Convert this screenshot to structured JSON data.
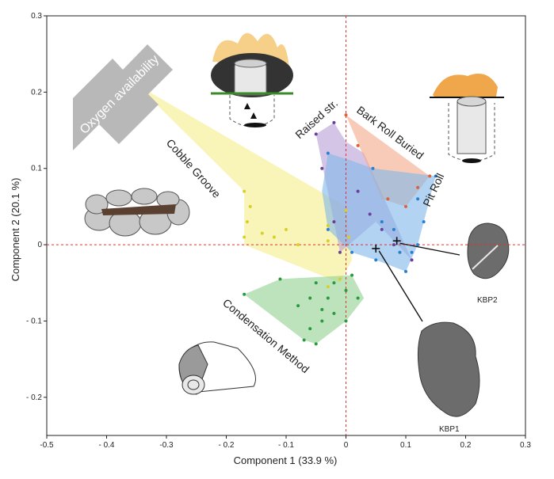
{
  "chart_data": {
    "type": "scatter",
    "xlabel": "Component 1 (33.9 %)",
    "ylabel": "Component 2 (20.1 %)",
    "xlim": [
      -0.5,
      0.3
    ],
    "ylim": [
      -0.25,
      0.3
    ],
    "x_ticks": [
      -0.5,
      -0.4,
      -0.3,
      -0.2,
      -0.1,
      0,
      0.1,
      0.2,
      0.3
    ],
    "x_tick_labels": [
      "-0.5",
      "- 0.4",
      "-0.3",
      "- 0.2",
      "- 0.1",
      "0",
      "0.1",
      "0.2",
      "0.3"
    ],
    "y_ticks": [
      -0.2,
      -0.1,
      0,
      0.1,
      0.2,
      0.3
    ],
    "y_tick_labels": [
      "- 0.2",
      "- 0.1",
      "0",
      "0.1",
      "0.2",
      "0.3"
    ],
    "reference_lines": {
      "x": 0,
      "y": 0
    },
    "grid": false,
    "series": [
      {
        "name": "Cobble Groove",
        "color": "#d8cf2a",
        "fill": "#f5ef8a",
        "hull": [
          [
            -0.35,
            0.21
          ],
          [
            0.0,
            0.05
          ],
          [
            0.01,
            -0.02
          ],
          [
            -0.01,
            -0.05
          ],
          [
            -0.17,
            0.0
          ],
          [
            -0.17,
            0.07
          ]
        ],
        "points": [
          [
            -0.17,
            0.07
          ],
          [
            -0.16,
            0.05
          ],
          [
            -0.165,
            0.03
          ],
          [
            -0.17,
            0.01
          ],
          [
            -0.14,
            0.015
          ],
          [
            -0.12,
            0.01
          ],
          [
            -0.1,
            0.02
          ],
          [
            -0.08,
            0.0
          ],
          [
            -0.03,
            0.025
          ],
          [
            -0.03,
            0.005
          ],
          [
            0.0,
            0.045
          ],
          [
            0.005,
            0.01
          ],
          [
            -0.01,
            -0.045
          ],
          [
            -0.03,
            -0.055
          ]
        ]
      },
      {
        "name": "Condensation Method",
        "color": "#2a9a3e",
        "fill": "#8fd08f",
        "hull": [
          [
            -0.17,
            -0.065
          ],
          [
            -0.11,
            -0.045
          ],
          [
            0.01,
            -0.04
          ],
          [
            0.03,
            -0.07
          ],
          [
            0.0,
            -0.1
          ],
          [
            -0.05,
            -0.13
          ],
          [
            -0.07,
            -0.125
          ]
        ],
        "points": [
          [
            -0.17,
            -0.065
          ],
          [
            -0.11,
            -0.045
          ],
          [
            -0.05,
            -0.05
          ],
          [
            -0.02,
            -0.05
          ],
          [
            -0.06,
            -0.07
          ],
          [
            -0.08,
            -0.08
          ],
          [
            -0.04,
            -0.085
          ],
          [
            -0.04,
            -0.1
          ],
          [
            -0.06,
            -0.11
          ],
          [
            -0.07,
            -0.125
          ],
          [
            -0.05,
            -0.13
          ],
          [
            -0.03,
            -0.07
          ],
          [
            0.0,
            -0.06
          ],
          [
            0.01,
            -0.04
          ],
          [
            0.02,
            -0.07
          ],
          [
            0.0,
            -0.1
          ],
          [
            -0.02,
            -0.09
          ]
        ]
      },
      {
        "name": "Raised str.",
        "color": "#6a3e9a",
        "fill": "#b79fd6",
        "hull": [
          [
            -0.05,
            0.145
          ],
          [
            -0.02,
            0.16
          ],
          [
            0.0,
            0.135
          ],
          [
            0.03,
            0.12
          ],
          [
            0.11,
            -0.02
          ],
          [
            0.05,
            0.03
          ],
          [
            -0.01,
            -0.01
          ],
          [
            -0.02,
            0.03
          ]
        ],
        "points": [
          [
            -0.05,
            0.145
          ],
          [
            -0.02,
            0.16
          ],
          [
            -0.04,
            0.1
          ],
          [
            0.02,
            0.07
          ],
          [
            0.04,
            0.04
          ],
          [
            0.06,
            0.02
          ],
          [
            0.08,
            0.0
          ],
          [
            0.11,
            -0.02
          ],
          [
            -0.01,
            -0.01
          ],
          [
            -0.02,
            0.03
          ]
        ]
      },
      {
        "name": "Bark Roll Buried",
        "color": "#e0603a",
        "fill": "#f4a88a",
        "hull": [
          [
            0.0,
            0.17
          ],
          [
            0.14,
            0.09
          ],
          [
            0.1,
            0.05
          ],
          [
            0.06,
            0.06
          ]
        ],
        "points": [
          [
            0.0,
            0.17
          ],
          [
            0.02,
            0.13
          ],
          [
            0.14,
            0.09
          ],
          [
            0.12,
            0.075
          ],
          [
            0.1,
            0.05
          ],
          [
            0.07,
            0.06
          ]
        ]
      },
      {
        "name": "Pit Roll",
        "color": "#2a7fd0",
        "fill": "#7fb8ea",
        "hull": [
          [
            -0.03,
            0.12
          ],
          [
            0.01,
            0.11
          ],
          [
            0.045,
            0.1
          ],
          [
            0.15,
            0.09
          ],
          [
            0.12,
            0.0
          ],
          [
            0.1,
            -0.035
          ],
          [
            0.05,
            -0.02
          ],
          [
            0.01,
            -0.01
          ],
          [
            -0.03,
            0.02
          ],
          [
            -0.04,
            0.07
          ]
        ],
        "points": [
          [
            -0.03,
            0.12
          ],
          [
            0.045,
            0.1
          ],
          [
            0.15,
            0.09
          ],
          [
            0.12,
            0.06
          ],
          [
            0.13,
            0.03
          ],
          [
            0.12,
            0.0
          ],
          [
            0.1,
            -0.035
          ],
          [
            0.11,
            -0.01
          ],
          [
            0.09,
            -0.01
          ],
          [
            0.05,
            -0.02
          ],
          [
            0.01,
            -0.01
          ],
          [
            -0.03,
            0.02
          ],
          [
            0.06,
            0.03
          ],
          [
            0.08,
            0.02
          ]
        ]
      }
    ],
    "markers": [
      {
        "label": "KBP1",
        "x": 0.05,
        "y": -0.005
      },
      {
        "label": "KBP2",
        "x": 0.085,
        "y": 0.005
      }
    ],
    "annotations": {
      "arrow_label": "Oxygen availability",
      "group_labels": [
        "Cobble Groove",
        "Condensation Method",
        "Raised str.",
        "Bark Roll Buried",
        "Pit Roll"
      ],
      "photo_labels": [
        "KBP2",
        "KBP1"
      ]
    }
  },
  "colors": {
    "arrow": "#b8b8b8",
    "zero_line": "#e03030",
    "stone": "#c8c8c8",
    "rock": "#6c6c6c"
  }
}
